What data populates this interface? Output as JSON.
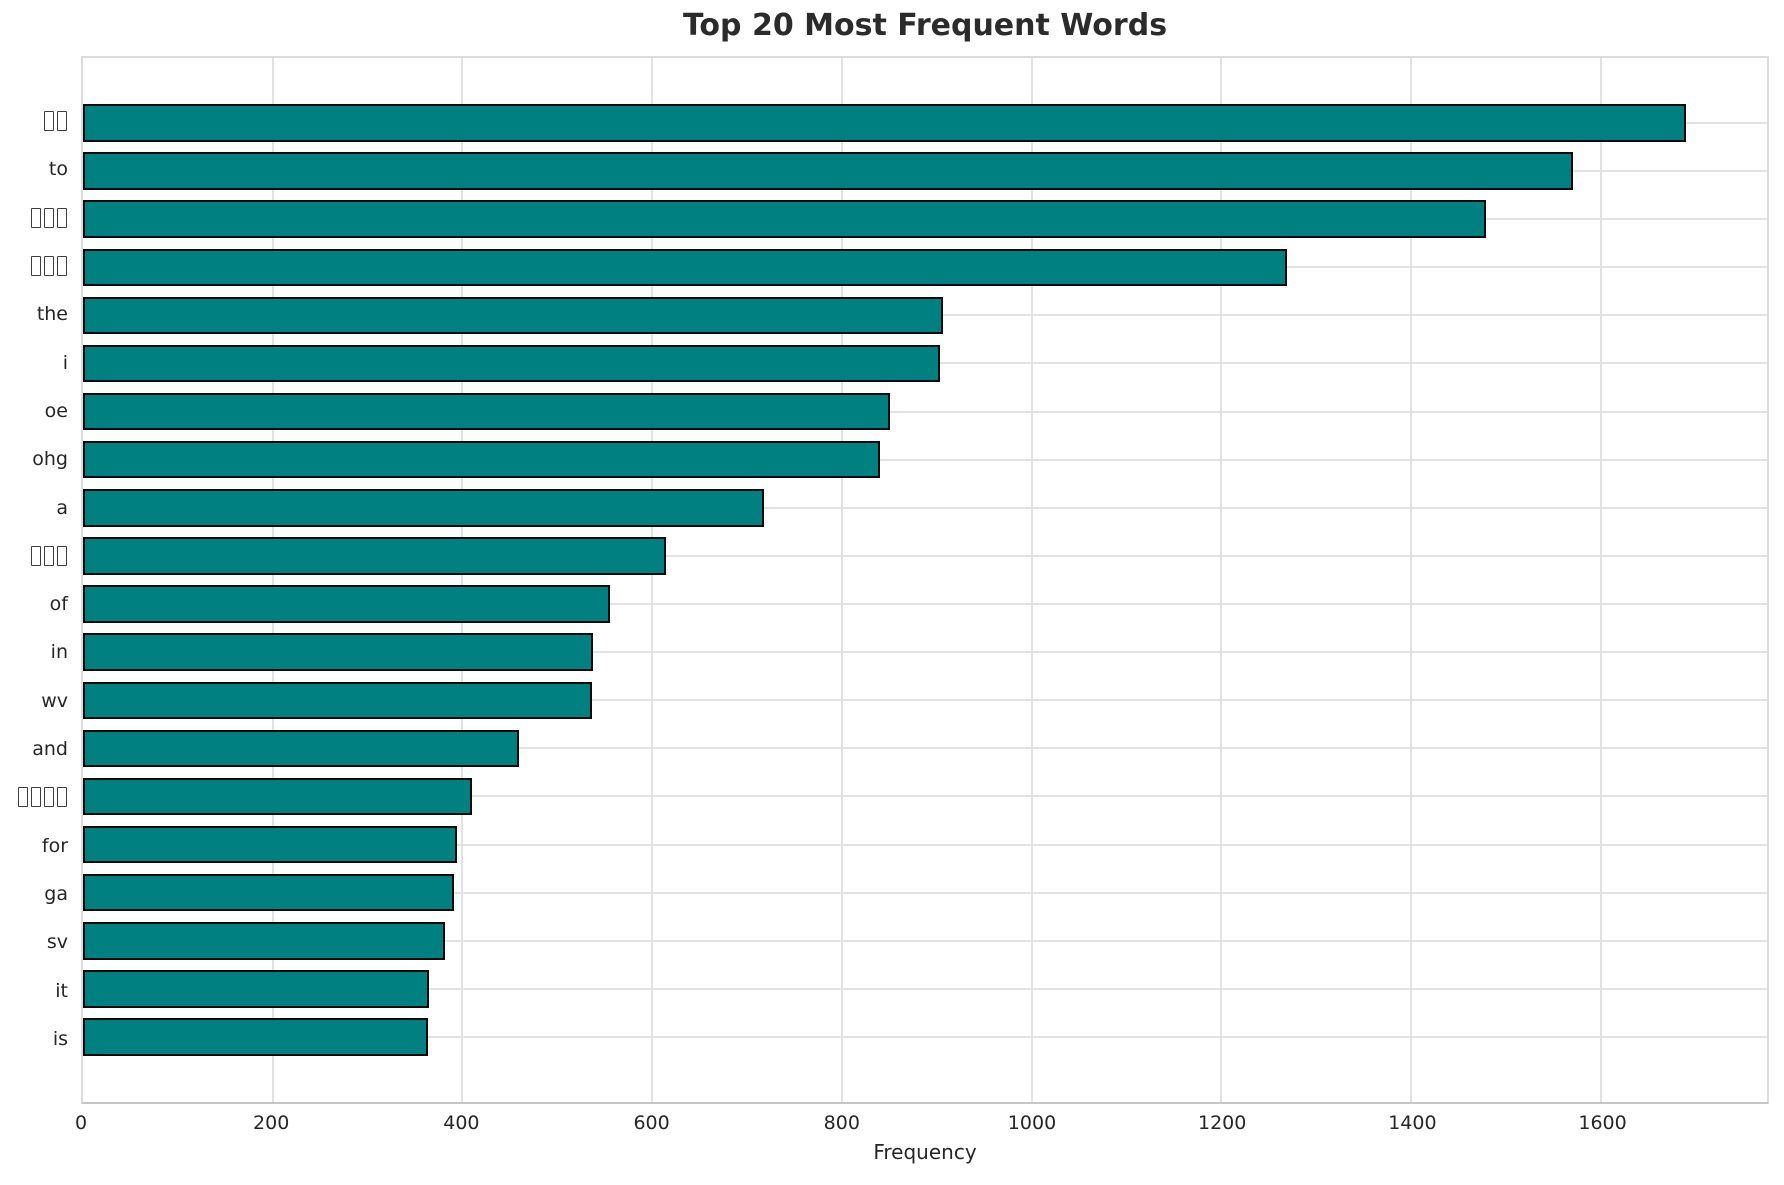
{
  "title": "Top 20 Most Frequent Words",
  "colors": {
    "bar_fill": "#008080",
    "bar_edge": "#0a0a0a",
    "grid": "#e2e2e2",
    "tick_text": "#262626",
    "title_text": "#2b2b2b"
  },
  "chart_data": {
    "type": "bar",
    "orientation": "horizontal",
    "title": "Top 20 Most Frequent Words",
    "xlabel": "Frequency",
    "ylabel": "",
    "grid": true,
    "legend": false,
    "xlim": [
      0,
      1775
    ],
    "xticks": [
      0,
      200,
      400,
      600,
      800,
      1000,
      1200,
      1400,
      1600
    ],
    "categories": [
      "□□",
      "to",
      "□□□",
      "□□□",
      "the",
      "i",
      "oe",
      "ohg",
      "a",
      "□□□",
      "of",
      "in",
      "wv",
      "and",
      "□□□□",
      "for",
      "ga",
      "sv",
      "it",
      "is"
    ],
    "values": [
      1690,
      1570,
      1479,
      1269,
      906,
      903,
      851,
      840,
      718,
      615,
      556,
      538,
      536,
      460,
      410,
      394,
      391,
      382,
      365,
      364
    ],
    "note_missing_glyph_labels": "labels shown as hollow tofu boxes in source image"
  }
}
